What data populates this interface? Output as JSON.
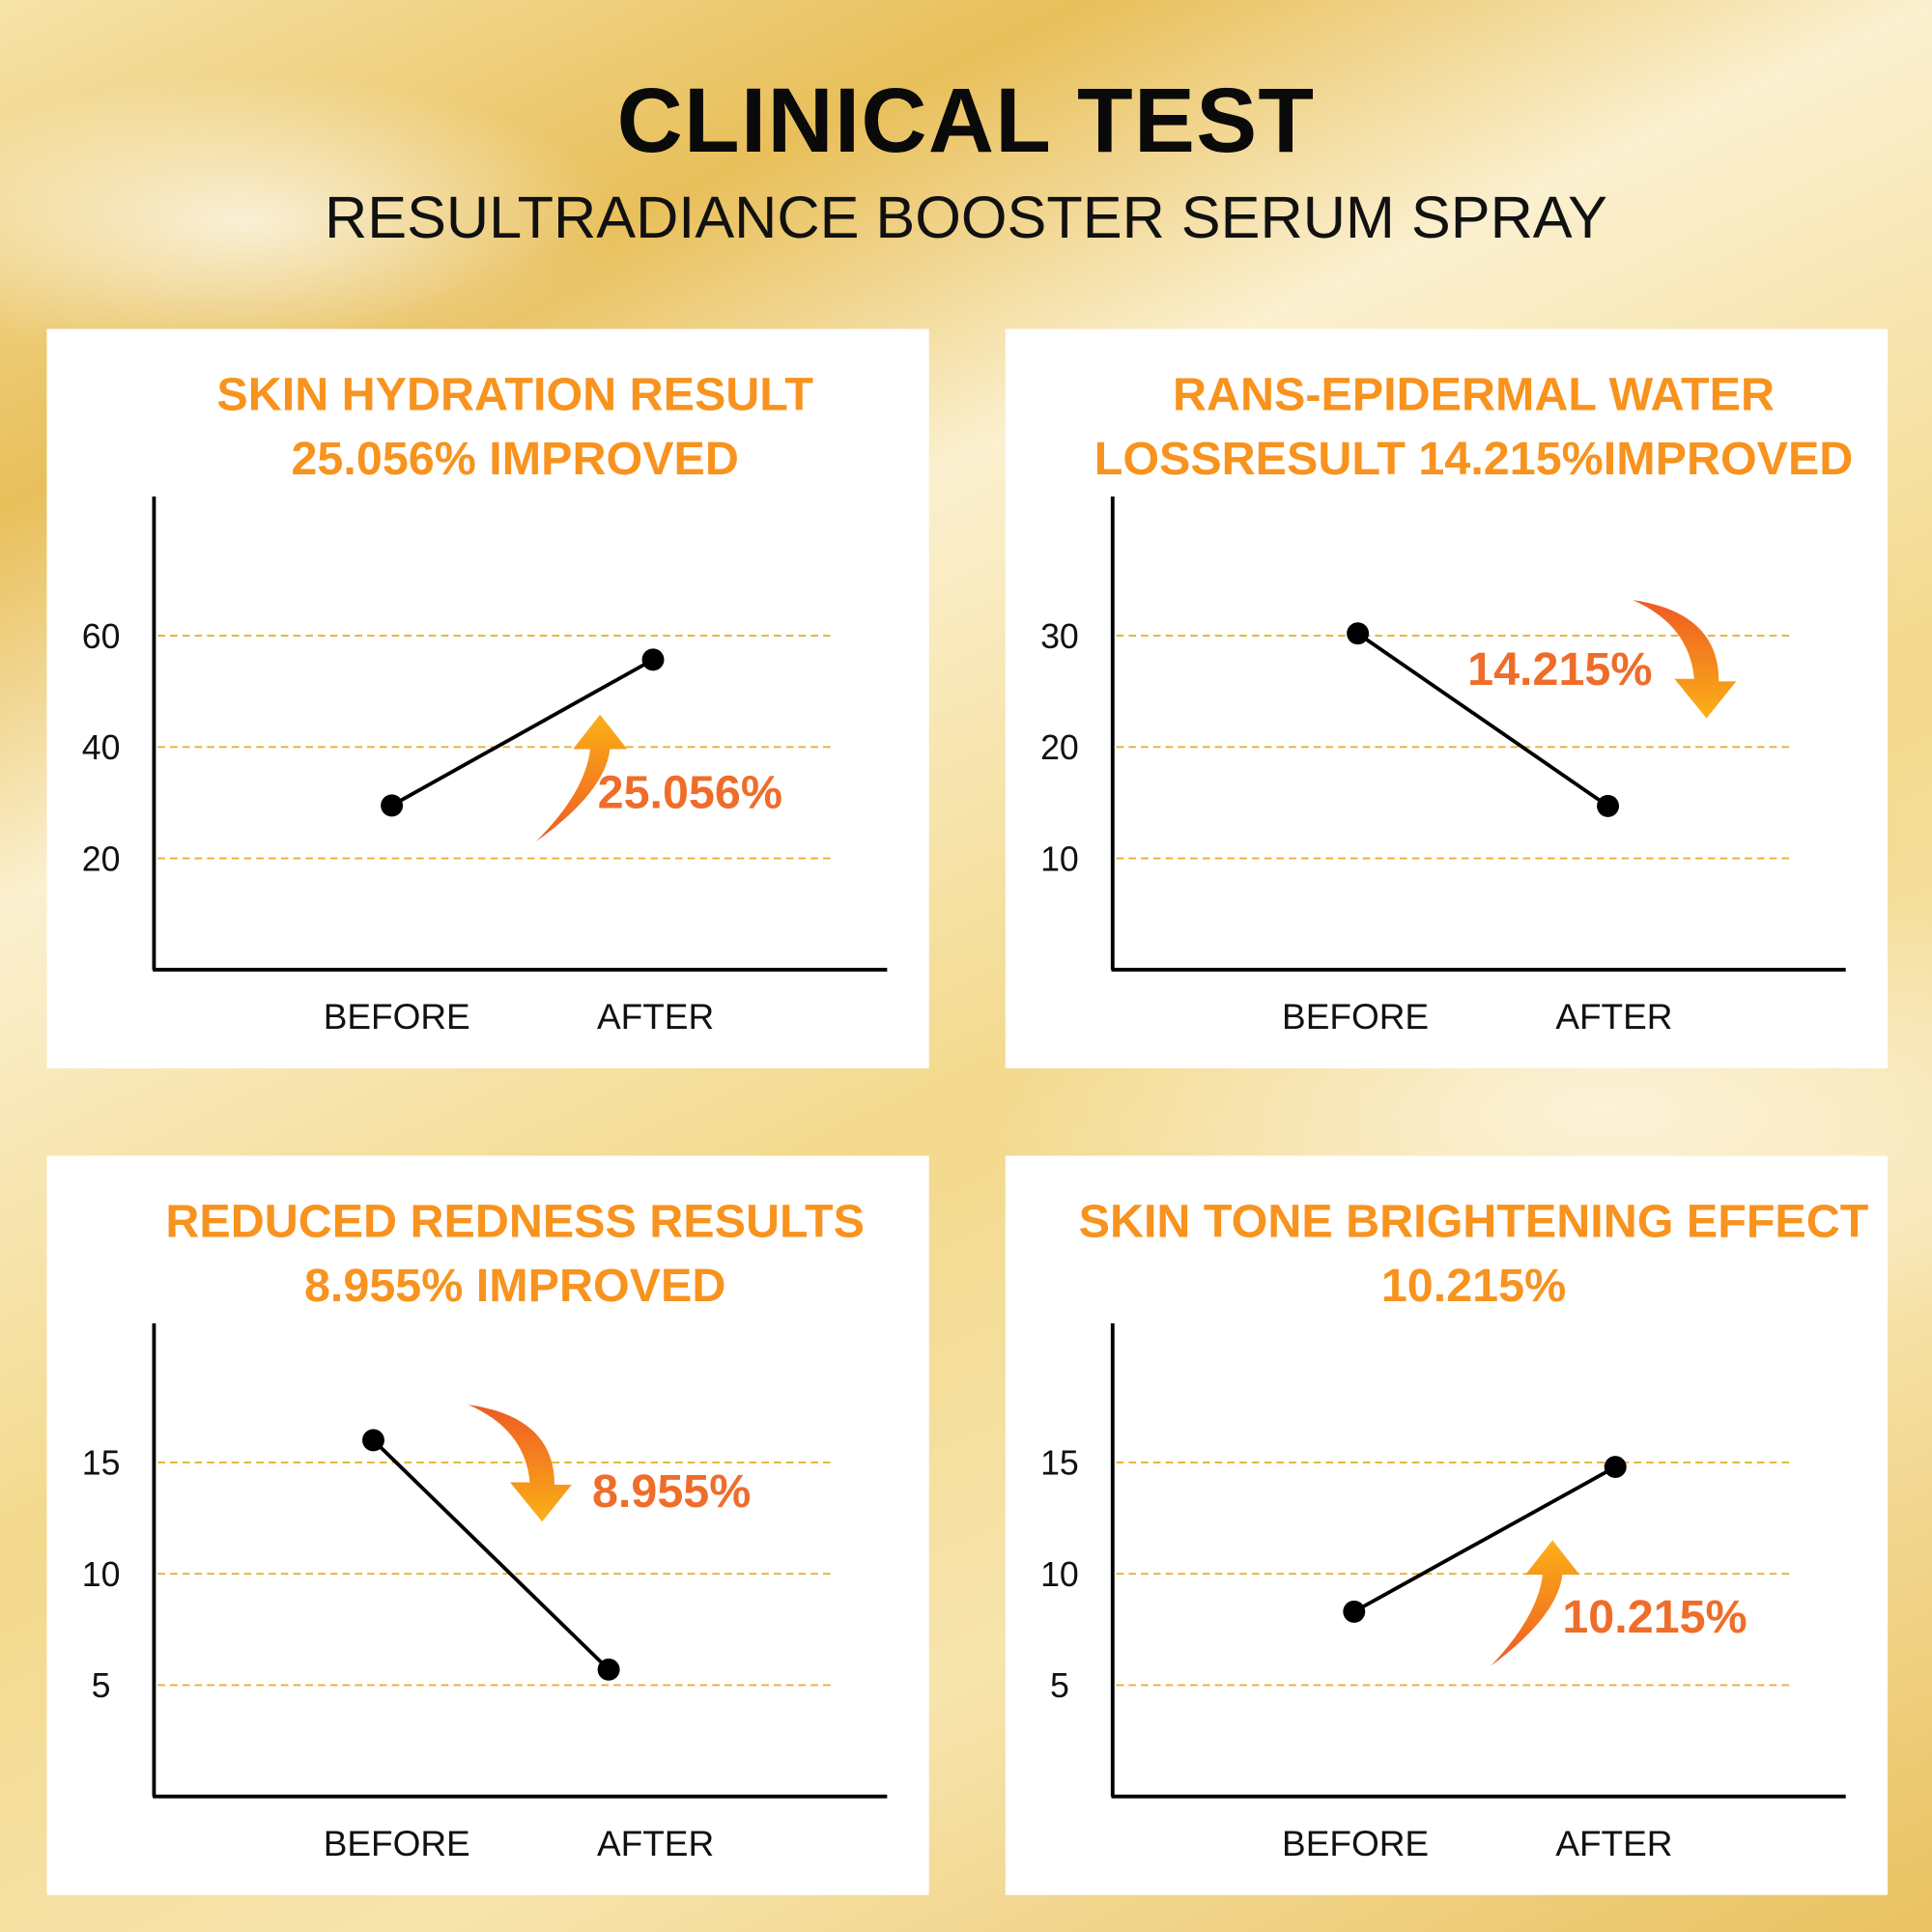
{
  "header": {
    "title": "CLINICAL TEST",
    "subtitle": "RESULTRADIANCE BOOSTER SERUM SPRAY"
  },
  "colors": {
    "title_orange": "#f7931e",
    "annotation_orange": "#ef6d2a",
    "gridline": "#e8b030",
    "line": "#000000"
  },
  "chart_data": [
    {
      "type": "line",
      "title_lines": [
        "SKIN HYDRATION RESULT",
        "25.056% IMPROVED"
      ],
      "categories": [
        "BEFORE",
        "AFTER"
      ],
      "values": [
        29.5,
        55.7
      ],
      "yticks": [
        "20",
        "40",
        "60"
      ],
      "ytick_values": [
        20,
        40,
        60
      ],
      "ylim": [
        0,
        85
      ],
      "annotation": "25.056%",
      "direction": "up",
      "grid": "dashed"
    },
    {
      "type": "line",
      "title_lines": [
        "RANS-EPIDERMAL WATER",
        "LOSSRESULT 14.215%IMPROVED"
      ],
      "categories": [
        "BEFORE",
        "AFTER"
      ],
      "values": [
        30.2,
        14.7
      ],
      "yticks": [
        "10",
        "20",
        "30"
      ],
      "ytick_values": [
        10,
        20,
        30
      ],
      "ylim": [
        0,
        42.5
      ],
      "annotation": "14.215%",
      "direction": "down",
      "grid": "dashed"
    },
    {
      "type": "line",
      "title_lines": [
        "REDUCED REDNESS RESULTS",
        "8.955% IMPROVED"
      ],
      "categories": [
        "BEFORE",
        "AFTER"
      ],
      "values": [
        16.0,
        5.7
      ],
      "yticks": [
        "5",
        "10",
        "15"
      ],
      "ytick_values": [
        5,
        10,
        15
      ],
      "ylim": [
        0,
        21.25
      ],
      "annotation": "8.955%",
      "direction": "down",
      "grid": "dashed"
    },
    {
      "type": "line",
      "title_lines": [
        "SKIN TONE BRIGHTENING EFFECT",
        "10.215%"
      ],
      "categories": [
        "BEFORE",
        "AFTER"
      ],
      "values": [
        8.3,
        14.8
      ],
      "yticks": [
        "5",
        "10",
        "15"
      ],
      "ytick_values": [
        5,
        10,
        15
      ],
      "ylim": [
        0,
        21.25
      ],
      "annotation": "10.215%",
      "direction": "up",
      "grid": "dashed"
    }
  ]
}
